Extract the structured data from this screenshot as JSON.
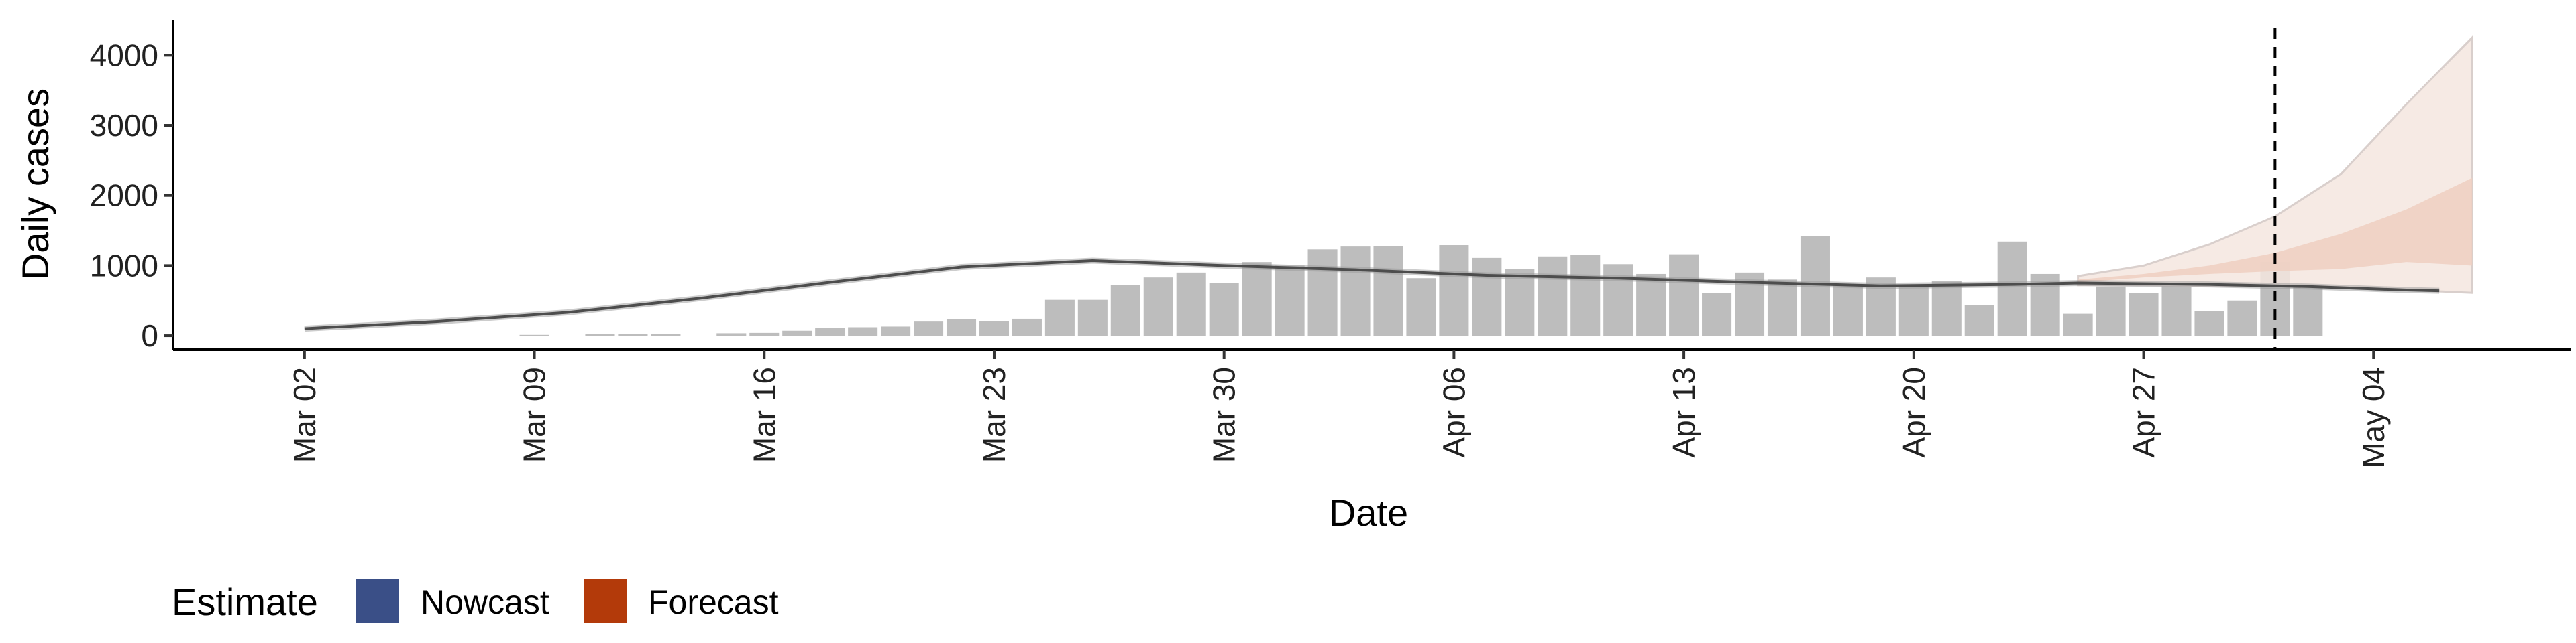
{
  "chart_data": {
    "type": "bar",
    "xlabel": "Date",
    "ylabel": "Daily cases",
    "x_range": [
      "2020-02-27",
      "2020-05-10"
    ],
    "ylim": [
      -200,
      4500
    ],
    "y_ticks": [
      0,
      1000,
      2000,
      3000,
      4000
    ],
    "x_ticks": [
      {
        "date": "2020-03-02",
        "label": "Mar 02"
      },
      {
        "date": "2020-03-09",
        "label": "Mar 09"
      },
      {
        "date": "2020-03-16",
        "label": "Mar 16"
      },
      {
        "date": "2020-03-23",
        "label": "Mar 23"
      },
      {
        "date": "2020-03-30",
        "label": "Mar 30"
      },
      {
        "date": "2020-04-06",
        "label": "Apr 06"
      },
      {
        "date": "2020-04-13",
        "label": "Apr 13"
      },
      {
        "date": "2020-04-20",
        "label": "Apr 20"
      },
      {
        "date": "2020-04-27",
        "label": "Apr 27"
      },
      {
        "date": "2020-05-04",
        "label": "May 04"
      }
    ],
    "grid": false,
    "colors": {
      "bars": "#bdbdbd",
      "nowcast": "#3a4f87",
      "forecast": "#b33a0a",
      "line": "#4d4d4d",
      "outer_band": "#f5e6df",
      "inner_band": "#eecfc1"
    },
    "observed_cases": {
      "start_date": "2020-03-02",
      "values": [
        null,
        null,
        null,
        null,
        null,
        null,
        null,
        12,
        null,
        20,
        25,
        20,
        null,
        35,
        40,
        70,
        110,
        120,
        130,
        200,
        230,
        210,
        240,
        510,
        510,
        720,
        830,
        900,
        750,
        1050,
        1000,
        1230,
        1270,
        1280,
        820,
        1290,
        1110,
        950,
        1130,
        1150,
        1020,
        880,
        1160,
        610,
        900,
        800,
        1420,
        720,
        830,
        720,
        780,
        440,
        1340,
        880,
        310,
        700,
        610,
        740,
        350,
        500,
        1050,
        720
      ]
    },
    "estimate_line": {
      "dates": [
        "2020-03-02",
        "2020-03-06",
        "2020-03-10",
        "2020-03-14",
        "2020-03-18",
        "2020-03-22",
        "2020-03-26",
        "2020-03-30",
        "2020-04-03",
        "2020-04-07",
        "2020-04-11",
        "2020-04-15",
        "2020-04-19",
        "2020-04-23",
        "2020-04-25",
        "2020-04-29",
        "2020-05-02",
        "2020-05-05",
        "2020-05-06"
      ],
      "values": [
        100,
        200,
        330,
        530,
        760,
        980,
        1070,
        1000,
        940,
        860,
        820,
        760,
        710,
        730,
        750,
        730,
        700,
        650,
        640
      ]
    },
    "forecast_band_outer": {
      "dates": [
        "2020-04-25",
        "2020-04-27",
        "2020-04-29",
        "2020-05-01",
        "2020-05-03",
        "2020-05-05",
        "2020-05-07"
      ],
      "lower": [
        720,
        720,
        710,
        700,
        690,
        650,
        610
      ],
      "upper": [
        850,
        1000,
        1300,
        1700,
        2300,
        3300,
        4250
      ]
    },
    "forecast_band_inner": {
      "dates": [
        "2020-04-25",
        "2020-04-27",
        "2020-04-29",
        "2020-05-01",
        "2020-05-03",
        "2020-05-05",
        "2020-05-07"
      ],
      "lower": [
        760,
        830,
        880,
        920,
        950,
        1050,
        1000
      ],
      "upper": [
        800,
        880,
        1000,
        1180,
        1450,
        1800,
        2250
      ]
    },
    "vline_date": "2020-05-01",
    "legend": {
      "title": "Estimate",
      "position": "bottom-left",
      "items": [
        {
          "label": "Nowcast",
          "color": "#3a4f87"
        },
        {
          "label": "Forecast",
          "color": "#b33a0a"
        }
      ]
    }
  }
}
